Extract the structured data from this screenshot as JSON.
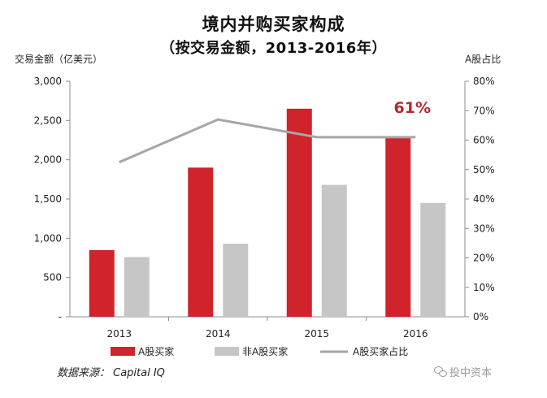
{
  "title": "境内并购买家构成",
  "subtitle": "（按交易金额，2013-2016年）",
  "source": "数据来源： Capital IQ",
  "watermark": "投中资本",
  "chart_data": {
    "type": "bar",
    "categories": [
      "2013",
      "2014",
      "2015",
      "2016"
    ],
    "series": [
      {
        "name": "A股买家",
        "type": "bar",
        "axis": "left",
        "color": "#d0232b",
        "values": [
          850,
          1900,
          2650,
          2300
        ]
      },
      {
        "name": "非A股买家",
        "type": "bar",
        "axis": "left",
        "color": "#c6c6c6",
        "values": [
          760,
          930,
          1680,
          1450
        ]
      },
      {
        "name": "A股买家占比",
        "type": "line",
        "axis": "right",
        "color": "#a6a6a6",
        "values": [
          52.5,
          67,
          61,
          61
        ]
      }
    ],
    "ylabel": "交易金额（亿美元）",
    "ylim": [
      0,
      3000
    ],
    "yticks": [
      "-",
      "500",
      "1,000",
      "1,500",
      "2,000",
      "2,500",
      "3,000"
    ],
    "y2label": "A股占比",
    "y2lim": [
      0,
      80
    ],
    "y2ticks": [
      "0%",
      "10%",
      "20%",
      "30%",
      "40%",
      "50%",
      "60%",
      "70%",
      "80%"
    ],
    "annotations": [
      {
        "text": "61%",
        "category": "2016",
        "color": "#b5282f"
      }
    ],
    "legend_position": "bottom",
    "grid": false
  }
}
